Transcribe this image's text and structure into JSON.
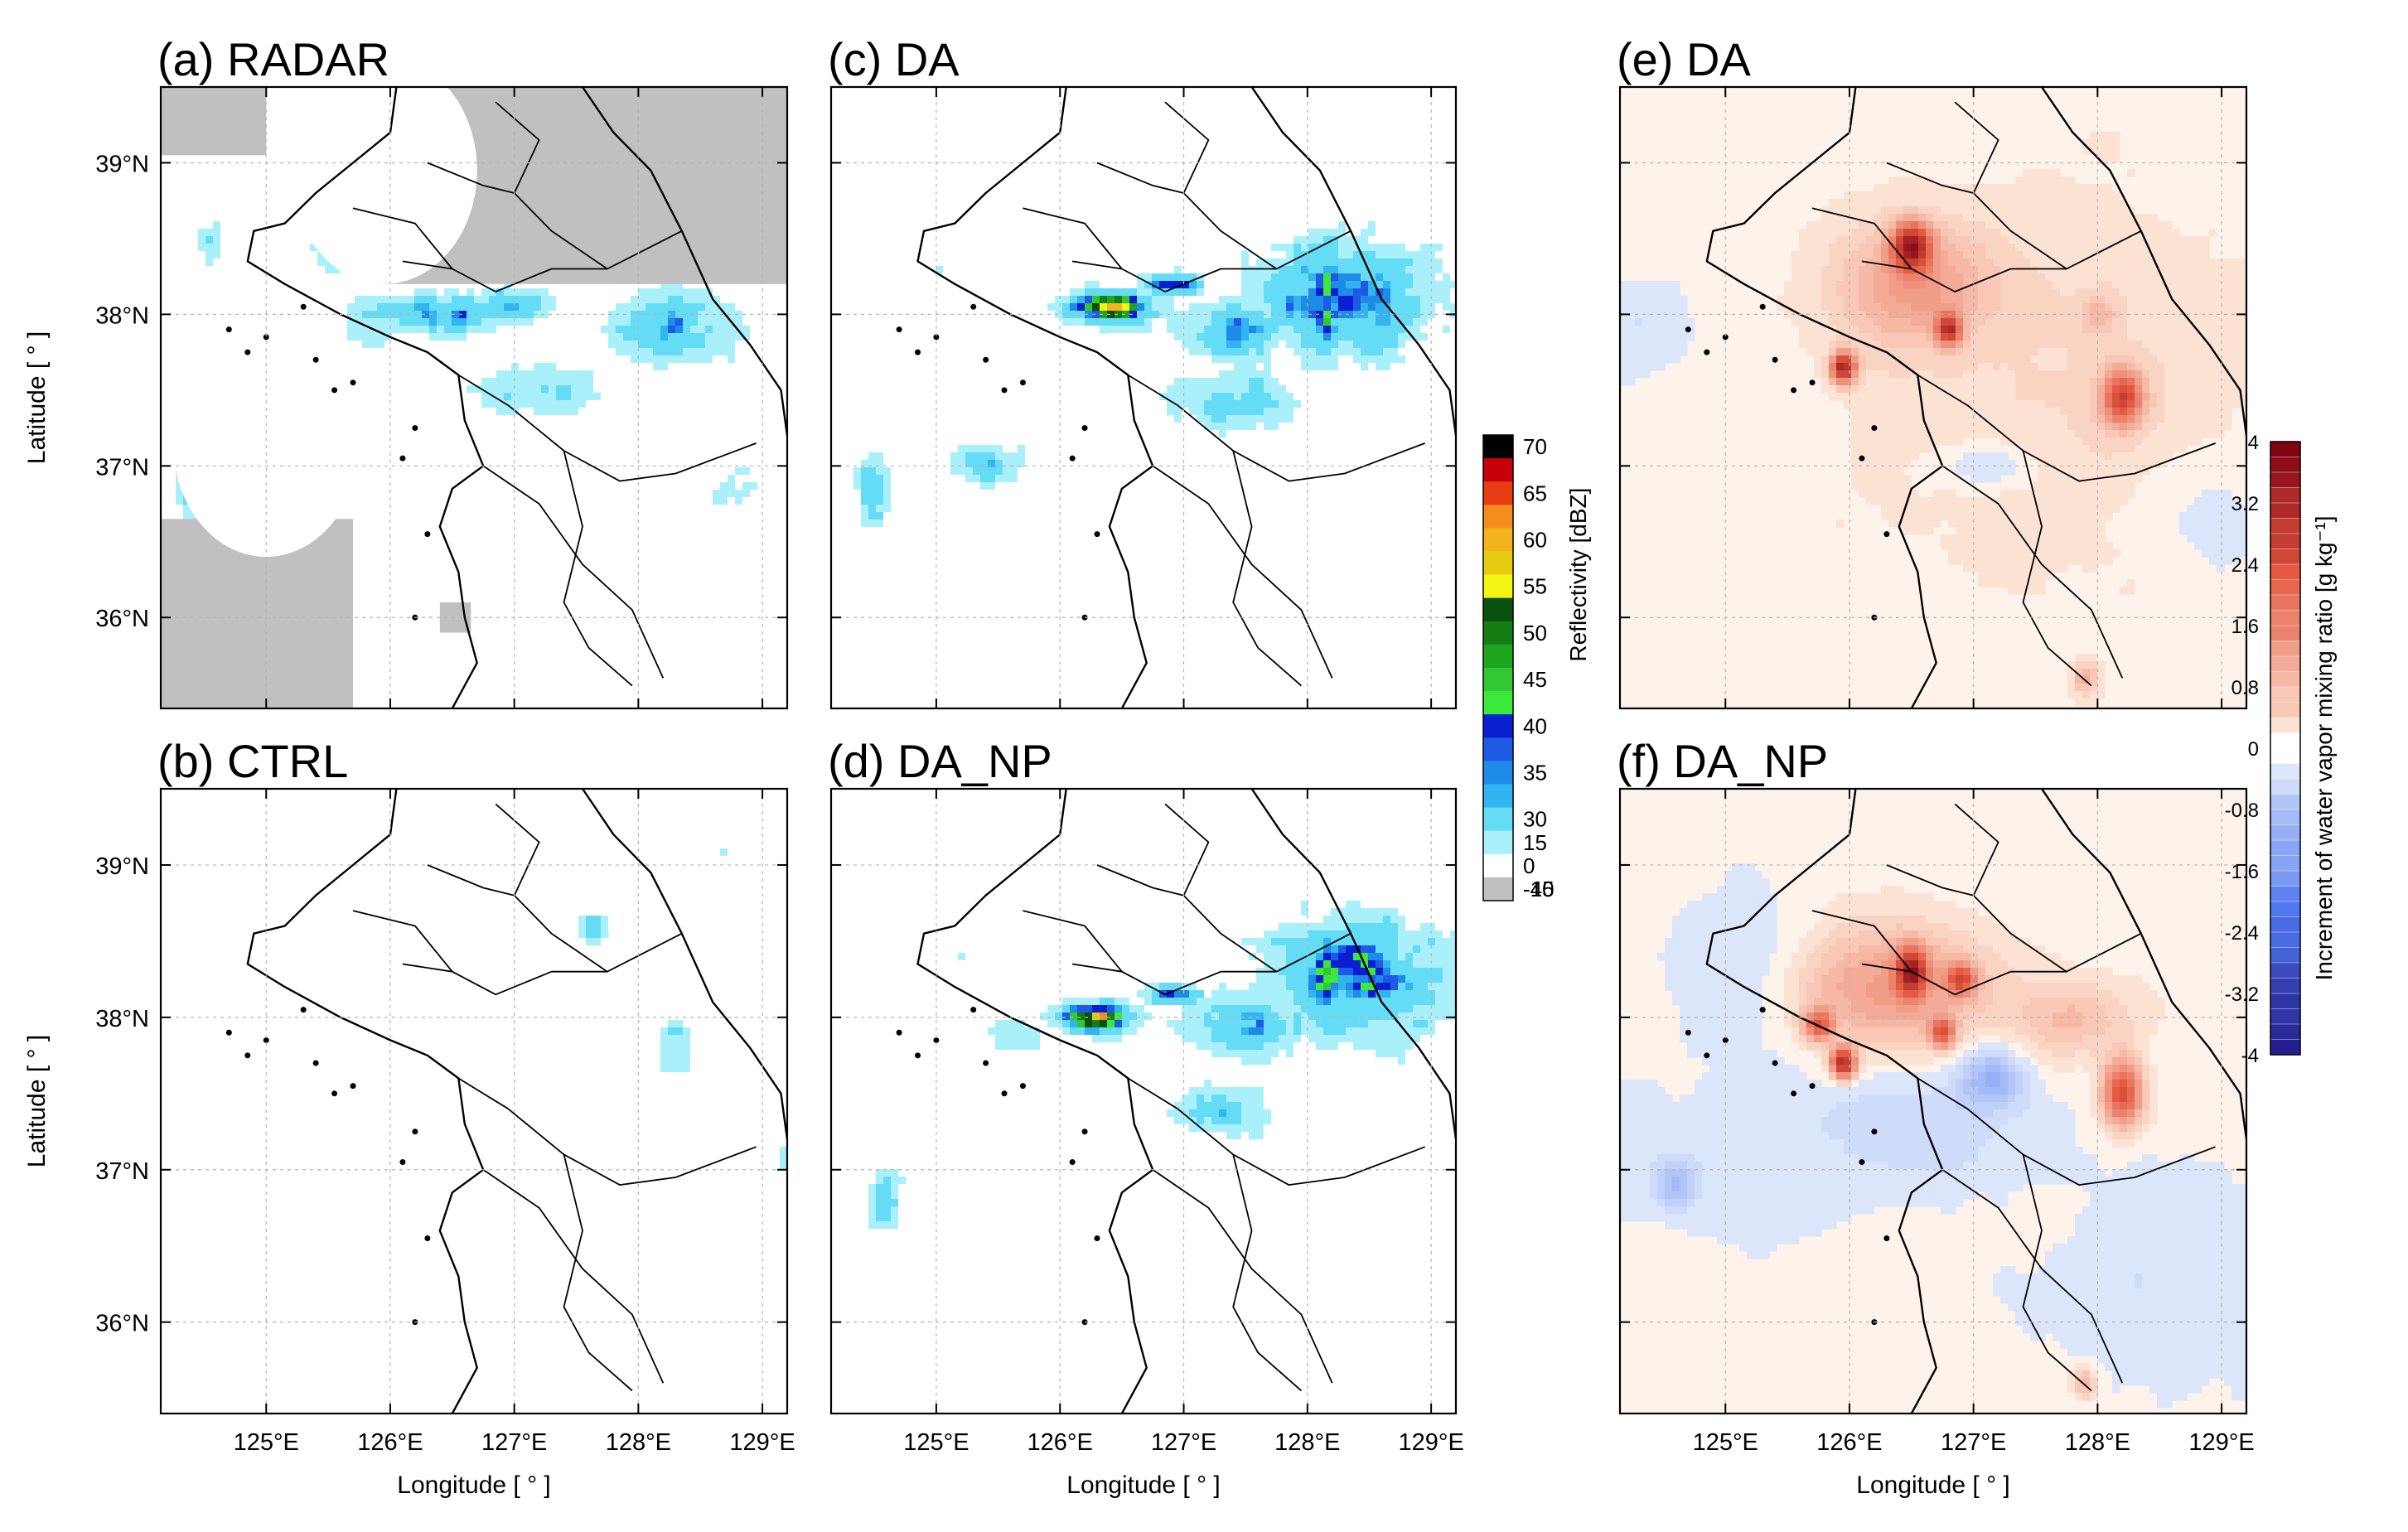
{
  "figure": {
    "lon_ticks": [
      "125°E",
      "126°E",
      "127°E",
      "128°E",
      "129°E"
    ],
    "lat_ticks": [
      "36°N",
      "37°N",
      "38°N",
      "39°N"
    ],
    "xlabel": "Longitude [ ° ]",
    "ylabel": "Latitude [ ° ]"
  },
  "chart_data": [
    {
      "id": "a",
      "type": "heatmap",
      "title": "(a) RADAR",
      "field": "reflectivity",
      "extent": {
        "lon": [
          124.15,
          129.2
        ],
        "lat": [
          35.4,
          39.5
        ]
      },
      "xlabel": "",
      "ylabel": "Latitude [ ° ]",
      "no_data_regions": [
        {
          "kind": "rect",
          "lon": [
            124.15,
            125.0
          ],
          "lat": [
            39.05,
            39.5
          ]
        },
        {
          "kind": "rect",
          "lon": [
            125.9,
            129.2
          ],
          "lat": [
            38.2,
            39.5
          ]
        },
        {
          "kind": "circle",
          "center": [
            125.95,
            38.95
          ],
          "radius": 0.75,
          "value": -40
        },
        {
          "kind": "rect",
          "lon": [
            124.15,
            125.7
          ],
          "lat": [
            35.4,
            36.65
          ]
        },
        {
          "kind": "circle",
          "center": [
            125.0,
            37.15
          ],
          "radius": 0.75,
          "value": -40
        },
        {
          "kind": "circle",
          "center": [
            127.35,
            35.75
          ],
          "radius": 1.25,
          "value": -40
        },
        {
          "kind": "rect",
          "lon": [
            126.4,
            126.65
          ],
          "lat": [
            35.9,
            36.1
          ]
        }
      ],
      "blobs": [
        {
          "lon": 126.4,
          "lat": 38.0,
          "sx": 0.9,
          "sy": 0.2,
          "peak": 34
        },
        {
          "lon": 127.0,
          "lat": 38.05,
          "sx": 0.4,
          "sy": 0.2,
          "peak": 30
        },
        {
          "lon": 128.3,
          "lat": 37.9,
          "sx": 0.8,
          "sy": 0.45,
          "peak": 27
        },
        {
          "lon": 127.2,
          "lat": 37.5,
          "sx": 1.0,
          "sy": 0.35,
          "peak": 14
        },
        {
          "lon": 125.5,
          "lat": 38.4,
          "sx": 0.5,
          "sy": 0.4,
          "peak": 4
        },
        {
          "lon": 124.55,
          "lat": 38.5,
          "sx": 0.3,
          "sy": 0.6,
          "peak": 2
        },
        {
          "lon": 124.4,
          "lat": 36.85,
          "sx": 0.18,
          "sy": 0.25,
          "peak": 30
        },
        {
          "lon": 127.8,
          "lat": 36.2,
          "sx": 0.9,
          "sy": 0.5,
          "peak": 2
        },
        {
          "lon": 128.8,
          "lat": 36.8,
          "sx": 0.5,
          "sy": 0.5,
          "peak": -1
        },
        {
          "lon": 125.85,
          "lat": 37.9,
          "sx": 0.4,
          "sy": 0.25,
          "peak": 8
        }
      ]
    },
    {
      "id": "b",
      "type": "heatmap",
      "title": "(b) CTRL",
      "field": "reflectivity",
      "extent": {
        "lon": [
          124.15,
          129.2
        ],
        "lat": [
          35.4,
          39.5
        ]
      },
      "xlabel": "Longitude [ ° ]",
      "ylabel": "Latitude [ ° ]",
      "blobs": [
        {
          "lon": 127.65,
          "lat": 38.6,
          "sx": 0.2,
          "sy": 0.15,
          "peak": 25
        },
        {
          "lon": 128.3,
          "lat": 37.8,
          "sx": 0.25,
          "sy": 0.45,
          "peak": 16
        },
        {
          "lon": 129.2,
          "lat": 37.1,
          "sx": 0.1,
          "sy": 0.2,
          "peak": 20
        },
        {
          "lon": 128.7,
          "lat": 39.1,
          "sx": 0.15,
          "sy": 0.15,
          "peak": 2
        }
      ]
    },
    {
      "id": "c",
      "type": "heatmap",
      "title": "(c) DA",
      "field": "reflectivity",
      "extent": {
        "lon": [
          124.15,
          129.2
        ],
        "lat": [
          35.4,
          39.5
        ]
      },
      "xlabel": "",
      "ylabel": "",
      "blobs": [
        {
          "lon": 128.3,
          "lat": 38.1,
          "sx": 1.0,
          "sy": 0.5,
          "peak": 40
        },
        {
          "lon": 127.4,
          "lat": 37.9,
          "sx": 0.6,
          "sy": 0.3,
          "peak": 34
        },
        {
          "lon": 126.4,
          "lat": 38.05,
          "sx": 0.45,
          "sy": 0.14,
          "peak": 51
        },
        {
          "lon": 126.9,
          "lat": 38.2,
          "sx": 0.3,
          "sy": 0.1,
          "peak": 48
        },
        {
          "lon": 127.4,
          "lat": 37.45,
          "sx": 0.9,
          "sy": 0.35,
          "peak": 22
        },
        {
          "lon": 125.4,
          "lat": 37.0,
          "sx": 0.55,
          "sy": 0.22,
          "peak": 22
        },
        {
          "lon": 124.5,
          "lat": 36.85,
          "sx": 0.2,
          "sy": 0.35,
          "peak": 30
        },
        {
          "lon": 125.0,
          "lat": 38.3,
          "sx": 0.4,
          "sy": 0.12,
          "peak": 0
        }
      ]
    },
    {
      "id": "d",
      "type": "heatmap",
      "title": "(d) DA_NP",
      "field": "reflectivity",
      "extent": {
        "lon": [
          124.15,
          129.2
        ],
        "lat": [
          35.4,
          39.5
        ]
      },
      "xlabel": "Longitude [ ° ]",
      "ylabel": "",
      "blobs": [
        {
          "lon": 128.4,
          "lat": 38.25,
          "sx": 1.0,
          "sy": 0.55,
          "peak": 40
        },
        {
          "lon": 127.5,
          "lat": 37.95,
          "sx": 0.7,
          "sy": 0.3,
          "peak": 36
        },
        {
          "lon": 126.3,
          "lat": 38.0,
          "sx": 0.45,
          "sy": 0.13,
          "peak": 51
        },
        {
          "lon": 126.9,
          "lat": 38.15,
          "sx": 0.3,
          "sy": 0.1,
          "peak": 48
        },
        {
          "lon": 127.3,
          "lat": 37.4,
          "sx": 0.7,
          "sy": 0.3,
          "peak": 20
        },
        {
          "lon": 124.6,
          "lat": 36.8,
          "sx": 0.2,
          "sy": 0.3,
          "peak": 30
        },
        {
          "lon": 125.7,
          "lat": 37.9,
          "sx": 0.5,
          "sy": 0.25,
          "peak": 10
        },
        {
          "lon": 125.2,
          "lat": 38.4,
          "sx": 0.3,
          "sy": 0.12,
          "peak": -2
        }
      ]
    },
    {
      "id": "e",
      "type": "heatmap",
      "title": "(e) DA",
      "field": "increment",
      "extent": {
        "lon": [
          124.15,
          129.2
        ],
        "lat": [
          35.4,
          39.5
        ]
      },
      "xlabel": "",
      "ylabel": "",
      "blobs": [
        {
          "lon": 126.5,
          "lat": 38.45,
          "sx": 0.15,
          "sy": 0.15,
          "peak": 3.0
        },
        {
          "lon": 126.5,
          "lat": 38.2,
          "sx": 0.6,
          "sy": 0.4,
          "peak": 1.1
        },
        {
          "lon": 126.8,
          "lat": 37.9,
          "sx": 0.1,
          "sy": 0.1,
          "peak": 2.6
        },
        {
          "lon": 125.95,
          "lat": 37.65,
          "sx": 0.1,
          "sy": 0.1,
          "peak": 3.2
        },
        {
          "lon": 128.2,
          "lat": 37.45,
          "sx": 0.16,
          "sy": 0.18,
          "peak": 2.4
        },
        {
          "lon": 128.0,
          "lat": 38.0,
          "sx": 0.15,
          "sy": 0.12,
          "peak": 0.6
        },
        {
          "lon": 127.9,
          "lat": 35.6,
          "sx": 0.1,
          "sy": 0.1,
          "peak": 0.9
        },
        {
          "lon": 127.8,
          "lat": 37.5,
          "sx": 1.6,
          "sy": 1.2,
          "peak": 0.35
        },
        {
          "lon": 127.1,
          "lat": 37.0,
          "sx": 0.4,
          "sy": 0.15,
          "peak": -0.5
        },
        {
          "lon": 128.8,
          "lat": 36.7,
          "sx": 0.6,
          "sy": 0.5,
          "peak": -0.3
        },
        {
          "lon": 124.3,
          "lat": 37.9,
          "sx": 0.4,
          "sy": 0.3,
          "peak": -0.3
        }
      ]
    },
    {
      "id": "f",
      "type": "heatmap",
      "title": "(f) DA_NP",
      "field": "increment",
      "extent": {
        "lon": [
          124.15,
          129.2
        ],
        "lat": [
          35.4,
          39.5
        ]
      },
      "xlabel": "Longitude [ ° ]",
      "ylabel": "",
      "blobs": [
        {
          "lon": 126.5,
          "lat": 38.3,
          "sx": 0.12,
          "sy": 0.15,
          "peak": 2.8
        },
        {
          "lon": 126.3,
          "lat": 38.2,
          "sx": 0.8,
          "sy": 0.4,
          "peak": 1.2
        },
        {
          "lon": 126.9,
          "lat": 38.25,
          "sx": 0.12,
          "sy": 0.1,
          "peak": 2.0
        },
        {
          "lon": 125.95,
          "lat": 37.7,
          "sx": 0.1,
          "sy": 0.1,
          "peak": 3.2
        },
        {
          "lon": 125.75,
          "lat": 37.95,
          "sx": 0.12,
          "sy": 0.1,
          "peak": 2.0
        },
        {
          "lon": 126.75,
          "lat": 37.9,
          "sx": 0.1,
          "sy": 0.1,
          "peak": 2.0
        },
        {
          "lon": 128.2,
          "lat": 37.5,
          "sx": 0.16,
          "sy": 0.22,
          "peak": 2.4
        },
        {
          "lon": 127.9,
          "lat": 35.6,
          "sx": 0.1,
          "sy": 0.1,
          "peak": 0.9
        },
        {
          "lon": 127.8,
          "lat": 38.0,
          "sx": 0.5,
          "sy": 0.25,
          "peak": 0.7
        },
        {
          "lon": 127.15,
          "lat": 37.6,
          "sx": 0.25,
          "sy": 0.2,
          "peak": -1.1
        },
        {
          "lon": 126.6,
          "lat": 37.3,
          "sx": 0.8,
          "sy": 0.4,
          "peak": -0.45
        },
        {
          "lon": 125.2,
          "lat": 38.3,
          "sx": 0.6,
          "sy": 0.5,
          "peak": -0.4
        },
        {
          "lon": 124.6,
          "lat": 36.9,
          "sx": 0.15,
          "sy": 0.15,
          "peak": -0.8
        },
        {
          "lon": 125.0,
          "lat": 37.0,
          "sx": 1.2,
          "sy": 0.6,
          "peak": -0.25
        },
        {
          "lon": 128.5,
          "lat": 36.2,
          "sx": 1.0,
          "sy": 0.8,
          "peak": -0.25
        }
      ]
    }
  ],
  "colorbar_reflectivity": {
    "label": "Reflectivity [dBZ]",
    "ticks": [
      "70",
      "65",
      "60",
      "55",
      "50",
      "45",
      "40",
      "35",
      "30",
      "15",
      "0",
      "-15",
      "-40"
    ],
    "colors": [
      "#000000",
      "#c8000a",
      "#e83c14",
      "#f58c1e",
      "#f5b41e",
      "#e6cc10",
      "#f5f514",
      "#0a500f",
      "#157d14",
      "#1ea51e",
      "#32c832",
      "#3ce83c",
      "#0a1ed2",
      "#1e5ae6",
      "#1e8ce6",
      "#32b4f0",
      "#64dcf5",
      "#aaf0fa",
      "#ffffff",
      "#c0c0c0"
    ]
  },
  "colorbar_increment": {
    "label": "Increment of water vapor mixing ratio [g kg⁻¹]",
    "ticks": [
      "4",
      "3.2",
      "2.4",
      "1.6",
      "0.8",
      "0",
      "-0.8",
      "-1.6",
      "-2.4",
      "-3.2",
      "-4"
    ],
    "range": [
      -4,
      4
    ],
    "levels": 40
  },
  "colors": {
    "coast": "#000000",
    "grid": "#b4b4b4",
    "frame": "#000000",
    "frame_blue": "#1f4e79"
  }
}
